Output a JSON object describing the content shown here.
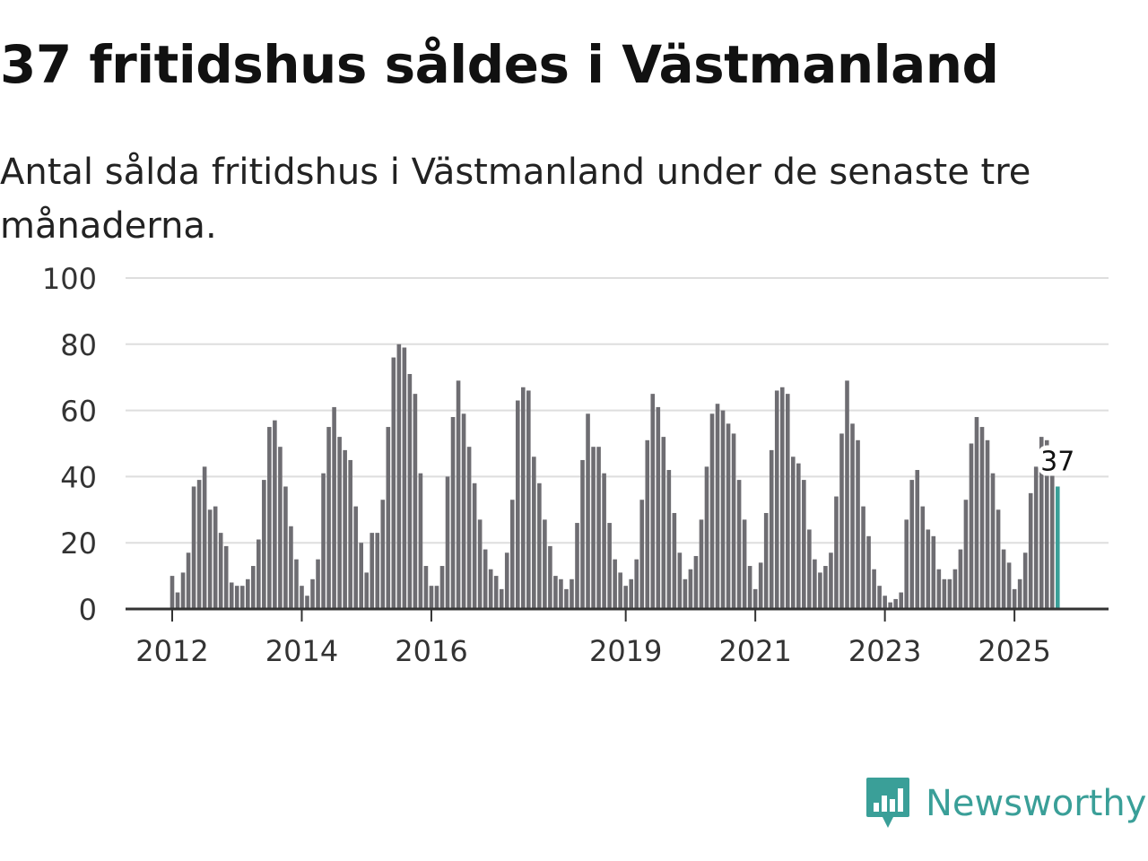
{
  "chart_data": {
    "type": "bar",
    "title": "37 fritidshus såldes i Västmanland",
    "subtitle": "Antal sålda fritidshus i Västmanland under de senaste tre månaderna.",
    "ylim": [
      0,
      100
    ],
    "yticks": [
      "0",
      "20",
      "40",
      "60",
      "80",
      "100"
    ],
    "xtick_labels": [
      "2012",
      "2014",
      "2016",
      "2019",
      "2021",
      "2023",
      "2025"
    ],
    "start": "2012-01",
    "values": [
      10,
      5,
      11,
      17,
      37,
      39,
      43,
      30,
      31,
      23,
      19,
      8,
      7,
      7,
      9,
      13,
      21,
      39,
      55,
      57,
      49,
      37,
      25,
      15,
      7,
      4,
      9,
      15,
      41,
      55,
      61,
      52,
      48,
      45,
      31,
      20,
      11,
      23,
      23,
      33,
      55,
      76,
      80,
      79,
      71,
      65,
      41,
      13,
      7,
      7,
      13,
      40,
      58,
      69,
      59,
      49,
      38,
      27,
      18,
      12,
      10,
      6,
      17,
      33,
      63,
      67,
      66,
      46,
      38,
      27,
      19,
      10,
      9,
      6,
      9,
      26,
      45,
      59,
      49,
      49,
      41,
      26,
      15,
      11,
      7,
      9,
      15,
      33,
      51,
      65,
      61,
      52,
      42,
      29,
      17,
      9,
      12,
      16,
      27,
      43,
      59,
      62,
      60,
      56,
      53,
      39,
      27,
      13,
      6,
      14,
      29,
      48,
      66,
      67,
      65,
      46,
      44,
      39,
      24,
      15,
      11,
      13,
      17,
      34,
      53,
      69,
      56,
      51,
      31,
      22,
      12,
      7,
      4,
      2,
      3,
      5,
      27,
      39,
      42,
      31,
      24,
      22,
      12,
      9,
      9,
      12,
      18,
      33,
      50,
      58,
      55,
      51,
      41,
      30,
      18,
      14,
      6,
      9,
      17,
      35,
      43,
      52,
      51,
      44,
      37
    ],
    "highlight_value": "37",
    "bar_color": "#6e6d72",
    "highlight_color": "#3a9f98",
    "grid_color": "#dedede",
    "axis_color": "#333333"
  },
  "brand": {
    "name": "Newsworthy",
    "color": "#3a9f98"
  }
}
